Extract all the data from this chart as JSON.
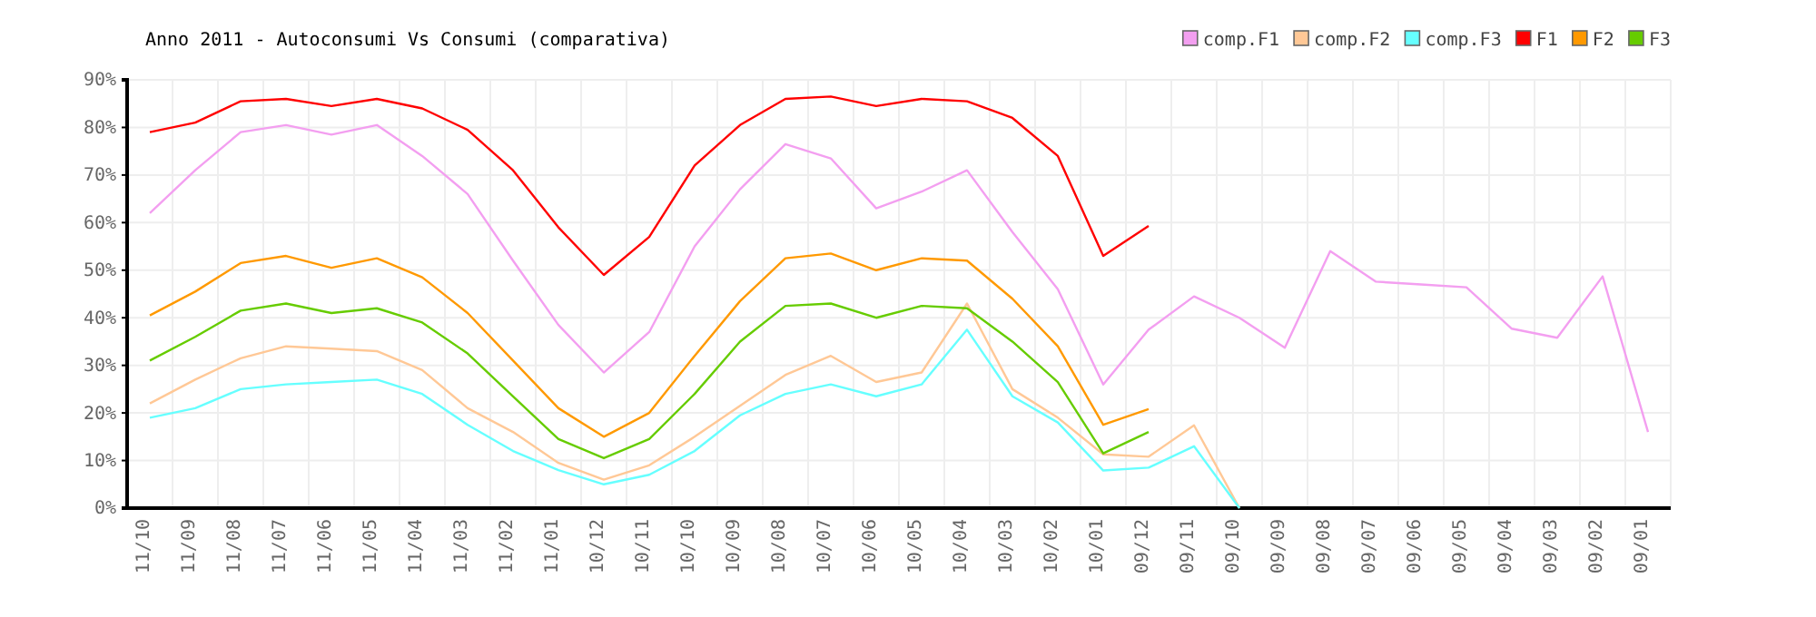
{
  "chart_data": {
    "type": "line",
    "title": "Anno 2011 - Autoconsumi Vs Consumi (comparativa)",
    "categories": [
      "11/10",
      "11/09",
      "11/08",
      "11/07",
      "11/06",
      "11/05",
      "11/04",
      "11/03",
      "11/02",
      "11/01",
      "10/12",
      "10/11",
      "10/10",
      "10/09",
      "10/08",
      "10/07",
      "10/06",
      "10/05",
      "10/04",
      "10/03",
      "10/02",
      "10/01",
      "09/12",
      "09/11",
      "09/10",
      "09/09",
      "09/08",
      "09/07",
      "09/06",
      "09/05",
      "09/04",
      "09/03",
      "09/02",
      "09/01"
    ],
    "series": [
      {
        "name": "comp.F1",
        "color": "#f39ff0",
        "values": [
          62,
          71,
          79,
          80.5,
          78.5,
          80.5,
          74,
          66,
          52,
          38.5,
          28.5,
          37,
          55,
          67,
          76.5,
          73.5,
          63,
          66.5,
          71,
          58,
          46,
          26,
          37.5,
          44.5,
          40,
          33.7,
          54,
          47.6,
          47,
          46.4,
          37.7,
          35.8,
          48.7,
          16
        ]
      },
      {
        "name": "comp.F2",
        "color": "#ffc896",
        "values": [
          22,
          27,
          31.5,
          34,
          33.5,
          33,
          29,
          21,
          16,
          9.5,
          6,
          9,
          15,
          21.5,
          28,
          32,
          26.5,
          28.5,
          43,
          25,
          19,
          11.3,
          10.8,
          17.4,
          0,
          null,
          null,
          null,
          null,
          null,
          null,
          null,
          null,
          null
        ]
      },
      {
        "name": "comp.F3",
        "color": "#66ffff",
        "values": [
          19,
          21,
          25,
          26,
          26.5,
          27,
          24,
          17.5,
          12,
          8,
          5,
          7,
          12,
          19.5,
          24,
          26,
          23.5,
          26,
          37.5,
          23.5,
          18,
          7.9,
          8.5,
          13,
          0,
          null,
          null,
          null,
          null,
          null,
          null,
          null,
          null,
          null
        ]
      },
      {
        "name": "F1",
        "color": "#ff0000",
        "values": [
          79,
          81,
          85.5,
          86,
          84.5,
          86,
          84,
          79.5,
          71,
          59,
          49,
          57,
          72,
          80.5,
          86,
          86.5,
          84.5,
          86,
          85.5,
          82,
          74,
          53,
          59.3,
          null,
          null,
          null,
          null,
          null,
          null,
          null,
          null,
          null,
          null,
          null
        ]
      },
      {
        "name": "F2",
        "color": "#ff9900",
        "values": [
          40.5,
          45.5,
          51.5,
          53,
          50.5,
          52.5,
          48.5,
          41,
          31,
          21,
          15,
          20,
          32,
          43.5,
          52.5,
          53.5,
          50,
          52.5,
          52,
          44,
          34,
          17.5,
          20.8,
          null,
          null,
          null,
          null,
          null,
          null,
          null,
          null,
          null,
          null,
          null
        ]
      },
      {
        "name": "F3",
        "color": "#66cc00",
        "values": [
          31,
          36,
          41.5,
          43,
          41,
          42,
          39,
          32.5,
          23.5,
          14.5,
          10.5,
          14.5,
          24,
          35,
          42.5,
          43,
          40,
          42.5,
          42,
          35,
          26.5,
          11.5,
          16,
          null,
          null,
          null,
          null,
          null,
          null,
          null,
          null,
          null,
          null,
          null
        ]
      }
    ],
    "ylim": [
      0,
      90
    ],
    "yticks": [
      {
        "value": 0,
        "label": "0%"
      },
      {
        "value": 10,
        "label": "10%"
      },
      {
        "value": 20,
        "label": "20%"
      },
      {
        "value": 30,
        "label": "30%"
      },
      {
        "value": 40,
        "label": "40%"
      },
      {
        "value": 50,
        "label": "50%"
      },
      {
        "value": 60,
        "label": "60%"
      },
      {
        "value": 70,
        "label": "70%"
      },
      {
        "value": 80,
        "label": "80%"
      },
      {
        "value": 90,
        "label": "90%"
      }
    ],
    "grid": true,
    "legend": "top right",
    "marker": "none",
    "line_style": "solid"
  }
}
